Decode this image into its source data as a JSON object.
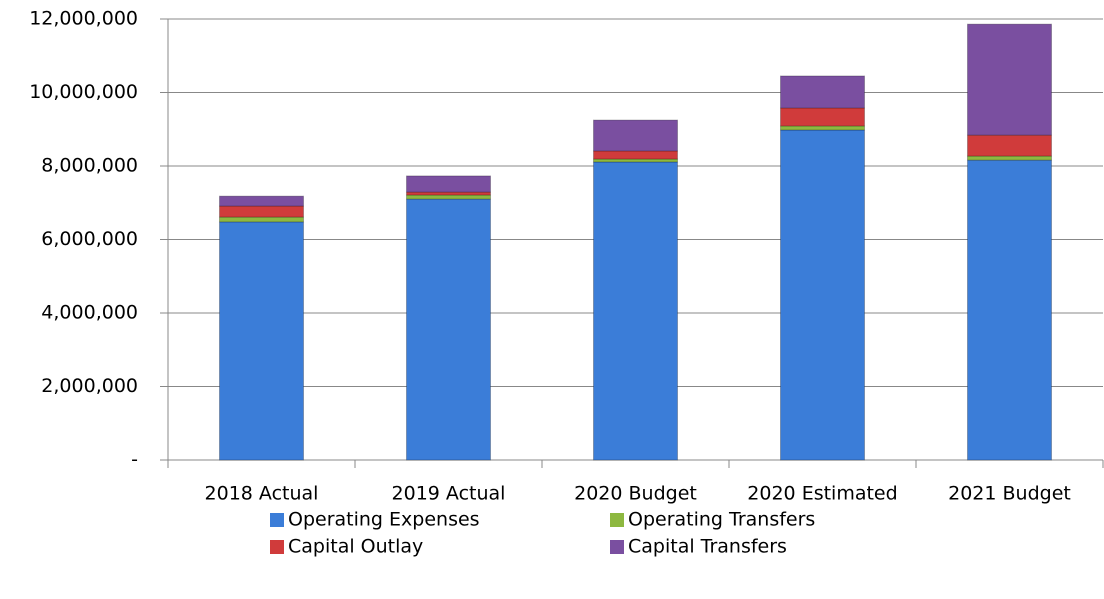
{
  "chart_data": {
    "type": "stacked_bar",
    "categories": [
      "2018 Actual",
      "2019 Actual",
      "2020 Budget",
      "2020 Estimated",
      "2021 Budget"
    ],
    "series": [
      {
        "name": "Operating Expenses",
        "color": "#3b7dd8",
        "values": [
          6480000,
          7100000,
          8110000,
          8980000,
          8160000
        ]
      },
      {
        "name": "Operating Transfers",
        "color": "#8db840",
        "values": [
          130000,
          110000,
          80000,
          110000,
          110000
        ]
      },
      {
        "name": "Capital Outlay",
        "color": "#d03b3b",
        "values": [
          300000,
          80000,
          220000,
          490000,
          570000
        ]
      },
      {
        "name": "Capital Transfers",
        "color": "#7a4fa0",
        "values": [
          270000,
          440000,
          840000,
          870000,
          3020000
        ]
      }
    ],
    "ylim": [
      0,
      12000000
    ],
    "yticks": [
      {
        "value": 0,
        "label": "-"
      },
      {
        "value": 2000000,
        "label": "2,000,000"
      },
      {
        "value": 4000000,
        "label": "4,000,000"
      },
      {
        "value": 6000000,
        "label": "6,000,000"
      },
      {
        "value": 8000000,
        "label": "8,000,000"
      },
      {
        "value": 10000000,
        "label": "10,000,000"
      },
      {
        "value": 12000000,
        "label": "12,000,000"
      }
    ],
    "grid": true,
    "legend": "bottom"
  }
}
